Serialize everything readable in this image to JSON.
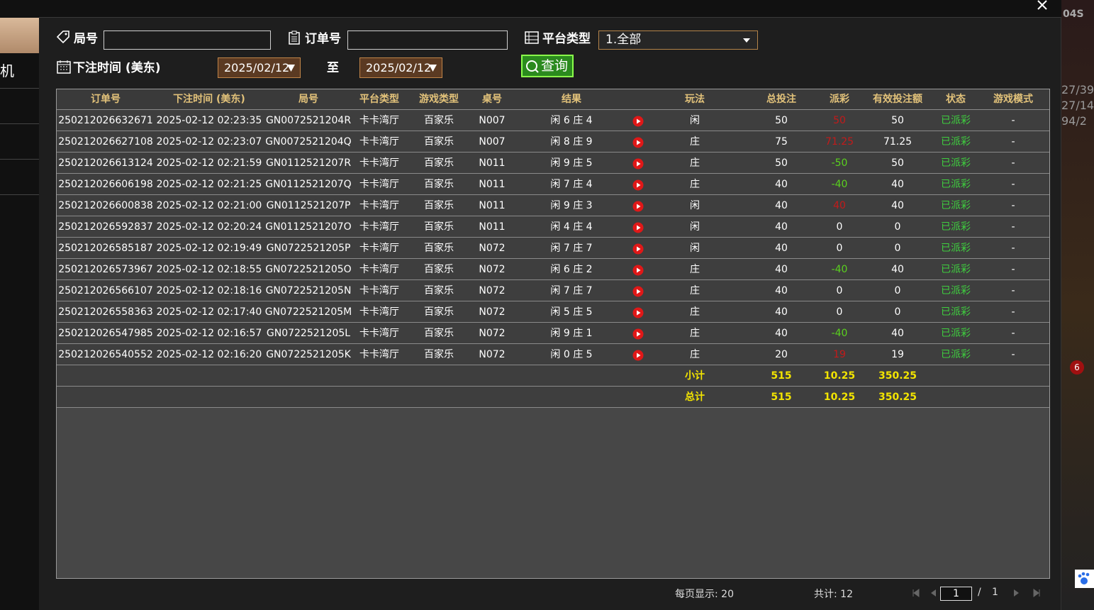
{
  "sidebar": {
    "items": [
      "机"
    ]
  },
  "side_text": [
    "04S",
    "27/39",
    "27/14",
    "94/2",
    "6"
  ],
  "filters": {
    "round_label": "局号",
    "order_label": "订单号",
    "platform_label": "平台类型",
    "platform_value": "1.全部",
    "time_label": "下注时间 (美东)",
    "date_from": "2025/02/12",
    "to": "至",
    "date_to": "2025/02/12",
    "query": "查询"
  },
  "table": {
    "headers": [
      "订单号",
      "下注时间 (美东)",
      "局号",
      "平台类型",
      "游戏类型",
      "桌号",
      "结果",
      "玩法",
      "总投注",
      "派彩",
      "有效投注额",
      "状态",
      "游戏模式"
    ],
    "rows": [
      [
        "250212026632671",
        "2025-02-12 02:23:35",
        "GN0072521204R",
        "卡卡湾厅",
        "百家乐",
        "N007",
        "闲 6 庄 4",
        "闲",
        "50",
        "50",
        "50",
        "已派彩",
        "-"
      ],
      [
        "250212026627108",
        "2025-02-12 02:23:07",
        "GN0072521204Q",
        "卡卡湾厅",
        "百家乐",
        "N007",
        "闲 8 庄 9",
        "庄",
        "75",
        "71.25",
        "71.25",
        "已派彩",
        "-"
      ],
      [
        "250212026613124",
        "2025-02-12 02:21:59",
        "GN0112521207R",
        "卡卡湾厅",
        "百家乐",
        "N011",
        "闲 9 庄 5",
        "庄",
        "50",
        "-50",
        "50",
        "已派彩",
        "-"
      ],
      [
        "250212026606198",
        "2025-02-12 02:21:25",
        "GN0112521207Q",
        "卡卡湾厅",
        "百家乐",
        "N011",
        "闲 7 庄 4",
        "庄",
        "40",
        "-40",
        "40",
        "已派彩",
        "-"
      ],
      [
        "250212026600838",
        "2025-02-12 02:21:00",
        "GN0112521207P",
        "卡卡湾厅",
        "百家乐",
        "N011",
        "闲 9 庄 3",
        "闲",
        "40",
        "40",
        "40",
        "已派彩",
        "-"
      ],
      [
        "250212026592837",
        "2025-02-12 02:20:24",
        "GN0112521207O",
        "卡卡湾厅",
        "百家乐",
        "N011",
        "闲 4 庄 4",
        "闲",
        "40",
        "0",
        "0",
        "已派彩",
        "-"
      ],
      [
        "250212026585187",
        "2025-02-12 02:19:49",
        "GN0722521205P",
        "卡卡湾厅",
        "百家乐",
        "N072",
        "闲 7 庄 7",
        "闲",
        "40",
        "0",
        "0",
        "已派彩",
        "-"
      ],
      [
        "250212026573967",
        "2025-02-12 02:18:55",
        "GN0722521205O",
        "卡卡湾厅",
        "百家乐",
        "N072",
        "闲 6 庄 2",
        "庄",
        "40",
        "-40",
        "40",
        "已派彩",
        "-"
      ],
      [
        "250212026566107",
        "2025-02-12 02:18:16",
        "GN0722521205N",
        "卡卡湾厅",
        "百家乐",
        "N072",
        "闲 7 庄 7",
        "庄",
        "40",
        "0",
        "0",
        "已派彩",
        "-"
      ],
      [
        "250212026558363",
        "2025-02-12 02:17:40",
        "GN0722521205M",
        "卡卡湾厅",
        "百家乐",
        "N072",
        "闲 5 庄 5",
        "庄",
        "40",
        "0",
        "0",
        "已派彩",
        "-"
      ],
      [
        "250212026547985",
        "2025-02-12 02:16:57",
        "GN0722521205L",
        "卡卡湾厅",
        "百家乐",
        "N072",
        "闲 9 庄 1",
        "庄",
        "40",
        "-40",
        "40",
        "已派彩",
        "-"
      ],
      [
        "250212026540552",
        "2025-02-12 02:16:20",
        "GN0722521205K",
        "卡卡湾厅",
        "百家乐",
        "N072",
        "闲 0 庄 5",
        "庄",
        "20",
        "19",
        "19",
        "已派彩",
        "-"
      ]
    ],
    "summary": [
      [
        "小计",
        "515",
        "10.25",
        "350.25"
      ],
      [
        "总计",
        "515",
        "10.25",
        "350.25"
      ]
    ]
  },
  "footer": {
    "page_size": "每页显示: 20",
    "total": "共计: 12",
    "page": "1",
    "slash": "/",
    "pages": "1"
  }
}
